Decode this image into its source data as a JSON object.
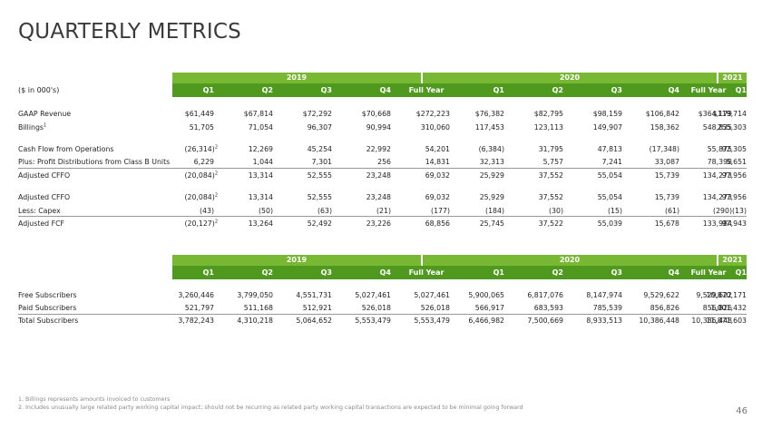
{
  "title": "QUARTERLY METRICS",
  "units": "($ in 000's)",
  "years": [
    "2019",
    "2020",
    "2021"
  ],
  "quarters": [
    "Q1",
    "Q2",
    "Q3",
    "Q4",
    "Full Year",
    "Q1",
    "Q2",
    "Q3",
    "Q4",
    "Full Year",
    "Q1"
  ],
  "table1": [
    {
      "label": "GAAP Revenue",
      "values": [
        "$61,449",
        "$67,814",
        "$72,292",
        "$70,668",
        "$272,223",
        "$76,382",
        "$82,795",
        "$98,159",
        "$106,842",
        "$364,179",
        "$119,714"
      ]
    },
    {
      "label": "Billings",
      "sup": "1",
      "values": [
        "51,705",
        "71,054",
        "96,307",
        "90,994",
        "310,060",
        "117,453",
        "123,113",
        "149,907",
        "158,362",
        "548,835",
        "255,303"
      ]
    },
    {
      "label": "Cash Flow from Operations",
      "values": [
        "(26,314)",
        "12,269",
        "45,254",
        "22,992",
        "54,201",
        "(6,384)",
        "31,795",
        "47,813",
        "(17,348)",
        "55,875",
        "92,305"
      ],
      "first_sup": "2"
    },
    {
      "label": "Plus: Profit Distributions from Class B Units",
      "values": [
        "6,229",
        "1,044",
        "7,301",
        "256",
        "14,831",
        "32,313",
        "5,757",
        "7,241",
        "33,087",
        "78,398",
        "5,651"
      ]
    },
    {
      "label": "Adjusted CFFO",
      "values": [
        "(20,084)",
        "13,314",
        "52,555",
        "23,248",
        "69,032",
        "25,929",
        "37,552",
        "55,054",
        "15,739",
        "134,273",
        "97,956"
      ],
      "first_sup": "2"
    },
    {
      "label": "Adjusted CFFO",
      "values": [
        "(20,084)",
        "13,314",
        "52,555",
        "23,248",
        "69,032",
        "25,929",
        "37,552",
        "55,054",
        "15,739",
        "134,273",
        "97,956"
      ],
      "first_sup": "2"
    },
    {
      "label": "Less: Capex",
      "values": [
        "(43)",
        "(50)",
        "(63)",
        "(21)",
        "(177)",
        "(184)",
        "(30)",
        "(15)",
        "(61)",
        "(290)",
        "(13)"
      ]
    },
    {
      "label": "Adjusted FCF",
      "values": [
        "(20,127)",
        "13,264",
        "52,492",
        "23,226",
        "68,856",
        "25,745",
        "37,522",
        "55,039",
        "15,678",
        "133,984",
        "97,943"
      ],
      "first_sup": "2"
    }
  ],
  "table2": [
    {
      "label": "Free Subscribers",
      "values": [
        "3,260,446",
        "3,799,050",
        "4,551,731",
        "5,027,461",
        "5,027,461",
        "5,900,065",
        "6,817,076",
        "8,147,974",
        "9,529,622",
        "9,529,622",
        "10,870,171"
      ]
    },
    {
      "label": "Paid Subscribers",
      "values": [
        "521,797",
        "511,168",
        "512,921",
        "526,018",
        "526,018",
        "566,917",
        "683,593",
        "785,539",
        "856,826",
        "856,826",
        "1,001,432"
      ]
    },
    {
      "label": "Total Subscribers",
      "values": [
        "3,782,243",
        "4,310,218",
        "5,064,652",
        "5,553,479",
        "5,553,479",
        "6,466,982",
        "7,500,669",
        "8,933,513",
        "10,386,448",
        "10,386,448",
        "11,871,603"
      ]
    }
  ],
  "footnotes": [
    "1. Billings represents amounts invoiced to customers",
    "2. Includes unusually large related party working capital impact; should not be recurring as related party working capital transactions are expected to be minimal going forward"
  ],
  "page_number": "46",
  "colors": {
    "year_bar": "#78b833",
    "quarter_bar": "#4f9a1e"
  }
}
